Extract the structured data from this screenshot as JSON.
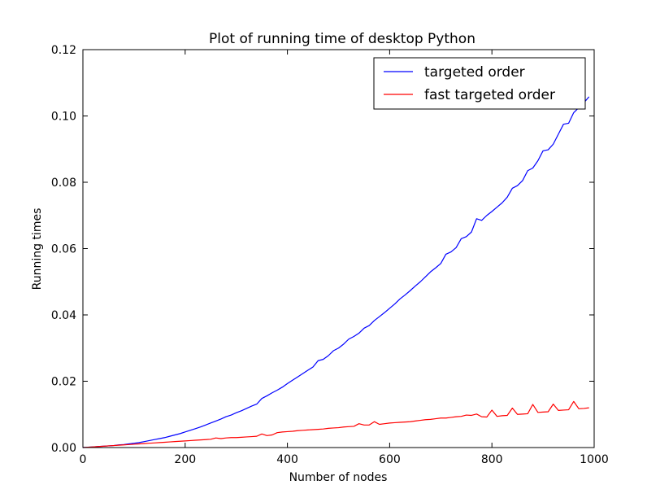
{
  "chart_data": {
    "type": "line",
    "title": "Plot of running time of desktop Python",
    "xlabel": "Number of nodes",
    "ylabel": "Running times",
    "xlim": [
      0,
      1000
    ],
    "ylim": [
      0,
      0.12
    ],
    "xticks": [
      0,
      200,
      400,
      600,
      800,
      1000
    ],
    "xtick_labels": [
      "0",
      "200",
      "400",
      "600",
      "800",
      "1000"
    ],
    "yticks": [
      0,
      0.02,
      0.04,
      0.06,
      0.08,
      0.1,
      0.12
    ],
    "ytick_labels": [
      "0.00",
      "0.02",
      "0.04",
      "0.06",
      "0.08",
      "0.10",
      "0.12"
    ],
    "grid": false,
    "legend_position": "top-right",
    "series": [
      {
        "name": "targeted order",
        "color": "#0000ff",
        "x": [
          0,
          10,
          20,
          30,
          40,
          50,
          60,
          70,
          80,
          90,
          100,
          110,
          120,
          130,
          140,
          150,
          160,
          170,
          180,
          190,
          200,
          210,
          220,
          230,
          240,
          250,
          260,
          270,
          280,
          290,
          300,
          310,
          320,
          330,
          340,
          350,
          360,
          370,
          380,
          390,
          400,
          410,
          420,
          430,
          440,
          450,
          460,
          470,
          480,
          490,
          500,
          510,
          520,
          530,
          540,
          550,
          560,
          570,
          580,
          590,
          600,
          610,
          620,
          630,
          640,
          650,
          660,
          670,
          680,
          690,
          700,
          710,
          720,
          730,
          740,
          750,
          760,
          770,
          780,
          790,
          800,
          810,
          820,
          830,
          840,
          850,
          860,
          870,
          880,
          890,
          900,
          910,
          920,
          930,
          940,
          950,
          960,
          970,
          980,
          990
        ],
        "values": [
          0.0,
          0.0001,
          0.0002,
          0.0003,
          0.0004,
          0.0005,
          0.0006,
          0.0008,
          0.0009,
          0.0011,
          0.0013,
          0.0015,
          0.0018,
          0.0021,
          0.0024,
          0.0027,
          0.003,
          0.0034,
          0.0038,
          0.0042,
          0.0047,
          0.0052,
          0.0057,
          0.0062,
          0.0068,
          0.0074,
          0.008,
          0.0086,
          0.0093,
          0.0098,
          0.0105,
          0.0111,
          0.0118,
          0.0125,
          0.0131,
          0.0148,
          0.0156,
          0.0165,
          0.0173,
          0.0182,
          0.0193,
          0.0203,
          0.0213,
          0.0223,
          0.0233,
          0.0243,
          0.0262,
          0.0266,
          0.0277,
          0.0292,
          0.03,
          0.0312,
          0.0327,
          0.0335,
          0.0345,
          0.036,
          0.0368,
          0.0383,
          0.0395,
          0.0407,
          0.042,
          0.0433,
          0.0448,
          0.046,
          0.0473,
          0.0487,
          0.05,
          0.0515,
          0.053,
          0.0542,
          0.0555,
          0.0583,
          0.059,
          0.0603,
          0.063,
          0.0636,
          0.065,
          0.069,
          0.0685,
          0.07,
          0.0712,
          0.0725,
          0.0738,
          0.0755,
          0.0782,
          0.079,
          0.0805,
          0.0835,
          0.0843,
          0.0865,
          0.0895,
          0.0898,
          0.0915,
          0.0945,
          0.0975,
          0.0978,
          0.101,
          0.1025,
          0.104,
          0.1058
        ]
      },
      {
        "name": "fast targeted order",
        "color": "#ff0000",
        "x": [
          0,
          10,
          20,
          30,
          40,
          50,
          60,
          70,
          80,
          90,
          100,
          110,
          120,
          130,
          140,
          150,
          160,
          170,
          180,
          190,
          200,
          210,
          220,
          230,
          240,
          250,
          260,
          270,
          280,
          290,
          300,
          310,
          320,
          330,
          340,
          350,
          360,
          370,
          380,
          390,
          400,
          410,
          420,
          430,
          440,
          450,
          460,
          470,
          480,
          490,
          500,
          510,
          520,
          530,
          540,
          550,
          560,
          570,
          580,
          590,
          600,
          610,
          620,
          630,
          640,
          650,
          660,
          670,
          680,
          690,
          700,
          710,
          720,
          730,
          740,
          750,
          760,
          770,
          780,
          790,
          800,
          810,
          820,
          830,
          840,
          850,
          860,
          870,
          880,
          890,
          900,
          910,
          920,
          930,
          940,
          950,
          960,
          970,
          980,
          990
        ],
        "values": [
          0.0,
          0.0001,
          0.0002,
          0.0003,
          0.0004,
          0.0005,
          0.0006,
          0.0007,
          0.0008,
          0.0009,
          0.001,
          0.0011,
          0.0012,
          0.0013,
          0.0014,
          0.0015,
          0.0016,
          0.0017,
          0.0018,
          0.0019,
          0.002,
          0.0021,
          0.0022,
          0.0023,
          0.0024,
          0.0025,
          0.0029,
          0.0027,
          0.0029,
          0.003,
          0.003,
          0.0031,
          0.0032,
          0.0033,
          0.0034,
          0.0041,
          0.0036,
          0.0038,
          0.0045,
          0.0047,
          0.0048,
          0.0049,
          0.0051,
          0.0052,
          0.0053,
          0.0054,
          0.0055,
          0.0056,
          0.0058,
          0.0059,
          0.006,
          0.0062,
          0.0063,
          0.0064,
          0.0072,
          0.0068,
          0.0068,
          0.0078,
          0.007,
          0.0072,
          0.0074,
          0.0075,
          0.0076,
          0.0077,
          0.0078,
          0.008,
          0.0082,
          0.0084,
          0.0085,
          0.0087,
          0.0089,
          0.0089,
          0.0091,
          0.0093,
          0.0094,
          0.0098,
          0.0097,
          0.0101,
          0.0093,
          0.0092,
          0.0113,
          0.0094,
          0.0096,
          0.0097,
          0.0119,
          0.01,
          0.0101,
          0.0102,
          0.013,
          0.0106,
          0.0107,
          0.0108,
          0.0131,
          0.0112,
          0.0113,
          0.0114,
          0.0139,
          0.0117,
          0.0118,
          0.012
        ]
      }
    ]
  }
}
